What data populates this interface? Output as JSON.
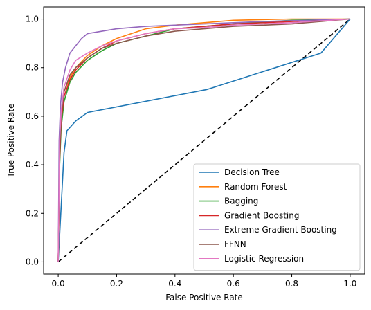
{
  "chart_data": {
    "type": "line",
    "title": "",
    "xlabel": "False Positive Rate",
    "ylabel": "True Positive Rate",
    "xlim": [
      -0.05,
      1.05
    ],
    "ylim": [
      -0.05,
      1.05
    ],
    "xticks": [
      "0.0",
      "0.2",
      "0.4",
      "0.6",
      "0.8",
      "1.0"
    ],
    "yticks": [
      "0.0",
      "0.2",
      "0.4",
      "0.6",
      "0.8",
      "1.0"
    ],
    "grid": false,
    "legend_position": "lower-right",
    "series": [
      {
        "name": "Decision Tree",
        "color": "#1f77b4",
        "x": [
          0,
          0.02,
          0.03,
          0.06,
          0.1,
          0.51,
          0.9,
          1.0
        ],
        "y": [
          0,
          0.45,
          0.54,
          0.58,
          0.615,
          0.71,
          0.86,
          1.0
        ]
      },
      {
        "name": "Random Forest",
        "color": "#ff7f0e",
        "x": [
          0,
          0.005,
          0.01,
          0.02,
          0.04,
          0.06,
          0.1,
          0.15,
          0.2,
          0.3,
          0.4,
          0.5,
          0.6,
          0.8,
          1.0
        ],
        "y": [
          0,
          0.45,
          0.6,
          0.7,
          0.76,
          0.8,
          0.85,
          0.89,
          0.92,
          0.96,
          0.975,
          0.985,
          0.995,
          1.0,
          1.0
        ]
      },
      {
        "name": "Bagging",
        "color": "#2ca02c",
        "x": [
          0,
          0.005,
          0.01,
          0.02,
          0.04,
          0.06,
          0.1,
          0.15,
          0.2,
          0.3,
          0.4,
          0.5,
          0.6,
          0.8,
          1.0
        ],
        "y": [
          0,
          0.4,
          0.55,
          0.66,
          0.74,
          0.78,
          0.83,
          0.87,
          0.9,
          0.93,
          0.96,
          0.97,
          0.98,
          0.995,
          1.0
        ]
      },
      {
        "name": "Gradient Boosting",
        "color": "#d62728",
        "x": [
          0,
          0.005,
          0.01,
          0.02,
          0.04,
          0.06,
          0.1,
          0.15,
          0.2,
          0.3,
          0.4,
          0.5,
          0.6,
          0.8,
          1.0
        ],
        "y": [
          0,
          0.42,
          0.58,
          0.68,
          0.75,
          0.79,
          0.84,
          0.88,
          0.91,
          0.94,
          0.96,
          0.97,
          0.98,
          0.99,
          1.0
        ]
      },
      {
        "name": "Extreme Gradient Boosting",
        "color": "#9467bd",
        "x": [
          0,
          0.003,
          0.008,
          0.015,
          0.025,
          0.04,
          0.06,
          0.08,
          0.1,
          0.15,
          0.2,
          0.3,
          0.4,
          0.5,
          0.7,
          1.0
        ],
        "y": [
          0,
          0.5,
          0.65,
          0.74,
          0.8,
          0.86,
          0.89,
          0.92,
          0.94,
          0.95,
          0.96,
          0.97,
          0.975,
          0.98,
          0.99,
          1.0
        ]
      },
      {
        "name": "FFNN",
        "color": "#8c564b",
        "x": [
          0,
          0.005,
          0.01,
          0.02,
          0.04,
          0.06,
          0.1,
          0.15,
          0.2,
          0.3,
          0.4,
          0.5,
          0.6,
          0.8,
          1.0
        ],
        "y": [
          0,
          0.45,
          0.6,
          0.7,
          0.77,
          0.8,
          0.84,
          0.88,
          0.9,
          0.93,
          0.95,
          0.96,
          0.97,
          0.98,
          1.0
        ]
      },
      {
        "name": "Logistic Regression",
        "color": "#e377c2",
        "x": [
          0,
          0.005,
          0.01,
          0.02,
          0.04,
          0.06,
          0.1,
          0.15,
          0.2,
          0.3,
          0.4,
          0.5,
          0.6,
          0.8,
          1.0
        ],
        "y": [
          0,
          0.5,
          0.62,
          0.72,
          0.79,
          0.83,
          0.86,
          0.89,
          0.91,
          0.94,
          0.96,
          0.965,
          0.975,
          0.985,
          1.0
        ]
      }
    ],
    "reference_line": {
      "x": [
        0,
        1
      ],
      "y": [
        0,
        1
      ],
      "color": "#000000",
      "style": "dashed"
    }
  }
}
